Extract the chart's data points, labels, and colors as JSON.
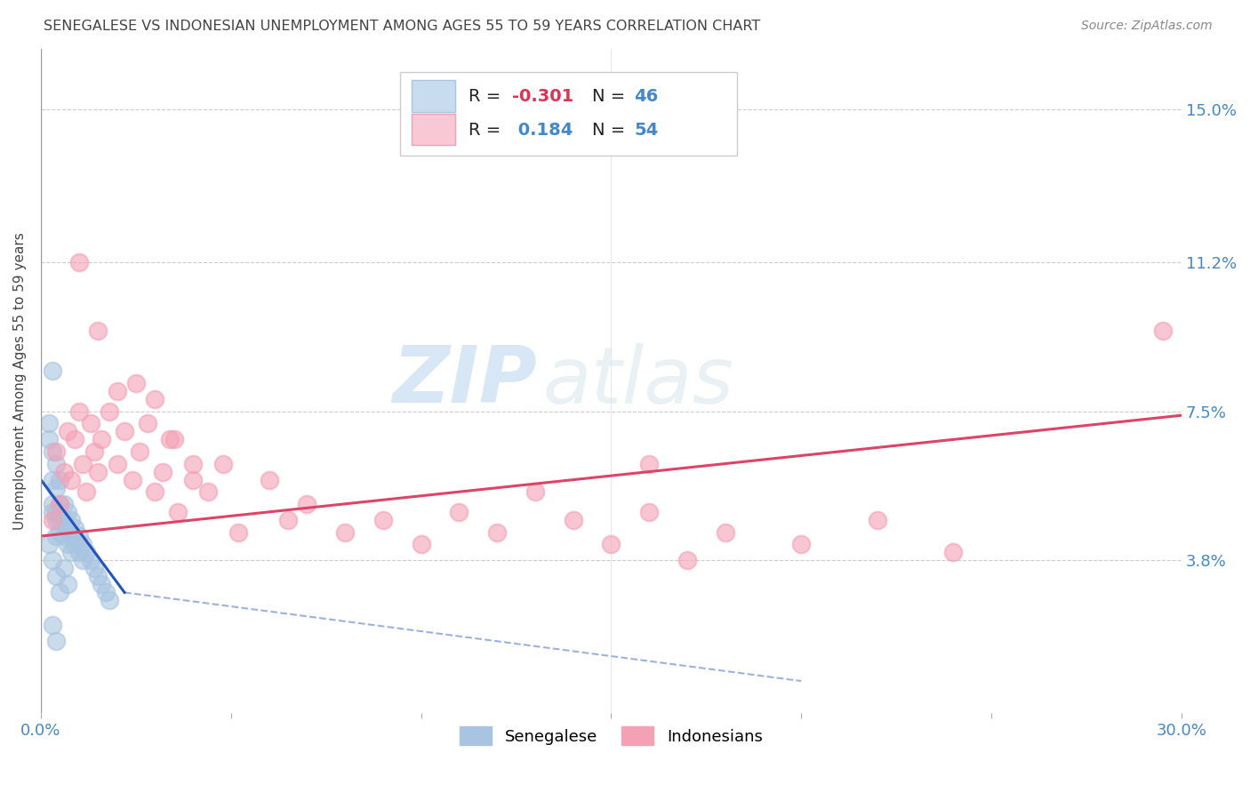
{
  "title": "SENEGALESE VS INDONESIAN UNEMPLOYMENT AMONG AGES 55 TO 59 YEARS CORRELATION CHART",
  "source": "Source: ZipAtlas.com",
  "ylabel": "Unemployment Among Ages 55 to 59 years",
  "xlim": [
    0.0,
    0.3
  ],
  "ylim": [
    0.0,
    0.165
  ],
  "xticks": [
    0.0,
    0.05,
    0.1,
    0.15,
    0.2,
    0.25,
    0.3
  ],
  "xticklabels": [
    "0.0%",
    "",
    "",
    "",
    "",
    "",
    "30.0%"
  ],
  "ytick_positions": [
    0.038,
    0.075,
    0.112,
    0.15
  ],
  "ytick_labels": [
    "3.8%",
    "7.5%",
    "11.2%",
    "15.0%"
  ],
  "legend_r_blue": "-0.301",
  "legend_n_blue": "46",
  "legend_r_pink": "0.184",
  "legend_n_pink": "54",
  "blue_color": "#a8c4e0",
  "pink_color": "#f4a0b5",
  "trend_blue_color": "#2255bb",
  "trend_pink_color": "#dd4466",
  "watermark_zip": "ZIP",
  "watermark_atlas": "atlas",
  "senegalese_x": [
    0.002,
    0.002,
    0.003,
    0.003,
    0.003,
    0.003,
    0.003,
    0.004,
    0.004,
    0.004,
    0.004,
    0.004,
    0.005,
    0.005,
    0.005,
    0.005,
    0.006,
    0.006,
    0.006,
    0.007,
    0.007,
    0.007,
    0.008,
    0.008,
    0.008,
    0.009,
    0.009,
    0.01,
    0.01,
    0.011,
    0.011,
    0.012,
    0.013,
    0.014,
    0.015,
    0.016,
    0.017,
    0.018,
    0.002,
    0.003,
    0.004,
    0.005,
    0.006,
    0.007,
    0.003,
    0.004
  ],
  "senegalese_y": [
    0.072,
    0.068,
    0.085,
    0.065,
    0.058,
    0.052,
    0.05,
    0.062,
    0.056,
    0.05,
    0.048,
    0.044,
    0.058,
    0.052,
    0.048,
    0.045,
    0.052,
    0.048,
    0.044,
    0.05,
    0.046,
    0.042,
    0.048,
    0.044,
    0.04,
    0.046,
    0.042,
    0.044,
    0.04,
    0.042,
    0.038,
    0.04,
    0.038,
    0.036,
    0.034,
    0.032,
    0.03,
    0.028,
    0.042,
    0.038,
    0.034,
    0.03,
    0.036,
    0.032,
    0.022,
    0.018
  ],
  "indonesian_x": [
    0.003,
    0.004,
    0.005,
    0.006,
    0.007,
    0.008,
    0.009,
    0.01,
    0.011,
    0.012,
    0.013,
    0.014,
    0.015,
    0.016,
    0.018,
    0.02,
    0.022,
    0.024,
    0.026,
    0.028,
    0.03,
    0.032,
    0.034,
    0.036,
    0.04,
    0.044,
    0.048,
    0.052,
    0.06,
    0.065,
    0.07,
    0.08,
    0.09,
    0.1,
    0.11,
    0.12,
    0.13,
    0.14,
    0.15,
    0.16,
    0.17,
    0.18,
    0.2,
    0.22,
    0.24,
    0.01,
    0.015,
    0.02,
    0.025,
    0.03,
    0.035,
    0.04,
    0.295,
    0.16
  ],
  "indonesian_y": [
    0.048,
    0.065,
    0.052,
    0.06,
    0.07,
    0.058,
    0.068,
    0.075,
    0.062,
    0.055,
    0.072,
    0.065,
    0.06,
    0.068,
    0.075,
    0.062,
    0.07,
    0.058,
    0.065,
    0.072,
    0.055,
    0.06,
    0.068,
    0.05,
    0.058,
    0.055,
    0.062,
    0.045,
    0.058,
    0.048,
    0.052,
    0.045,
    0.048,
    0.042,
    0.05,
    0.045,
    0.055,
    0.048,
    0.042,
    0.05,
    0.038,
    0.045,
    0.042,
    0.048,
    0.04,
    0.112,
    0.095,
    0.08,
    0.082,
    0.078,
    0.068,
    0.062,
    0.095,
    0.062
  ],
  "blue_trend_x0": 0.0,
  "blue_trend_y0": 0.058,
  "blue_trend_x1": 0.022,
  "blue_trend_y1": 0.03,
  "blue_trend_dash_x1": 0.2,
  "blue_trend_dash_y1": 0.008,
  "pink_trend_x0": 0.0,
  "pink_trend_y0": 0.044,
  "pink_trend_x1": 0.3,
  "pink_trend_y1": 0.074
}
